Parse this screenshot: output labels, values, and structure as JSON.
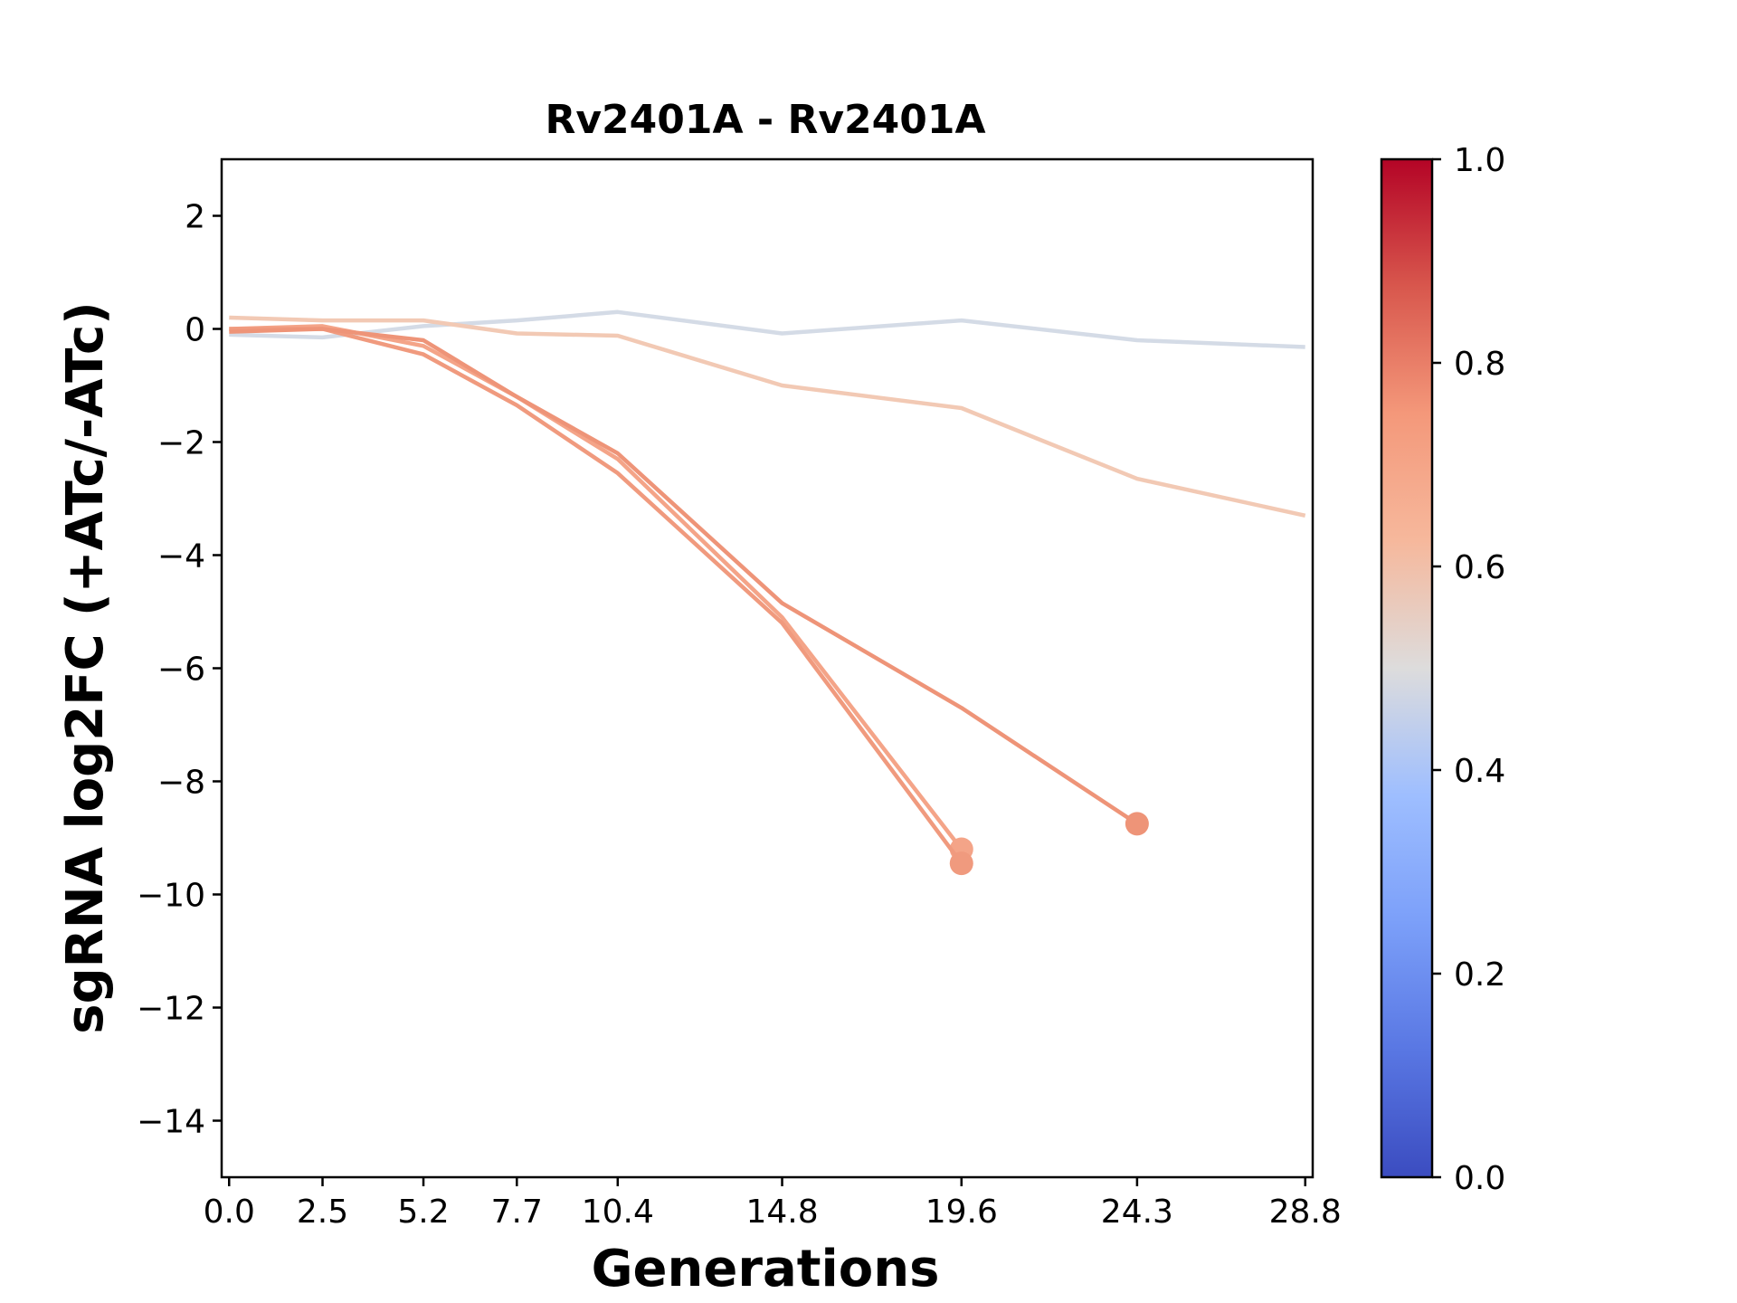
{
  "chart_data": {
    "type": "line",
    "title": "Rv2401A - Rv2401A",
    "xlabel": "Generations",
    "ylabel": "sgRNA log2FC (+ATc/-ATc)",
    "x_ticks": [
      0.0,
      2.5,
      5.2,
      7.7,
      10.4,
      14.8,
      19.6,
      24.3,
      28.8
    ],
    "x_tick_labels": [
      "0.0",
      "2.5",
      "5.2",
      "7.7",
      "10.4",
      "14.8",
      "19.6",
      "24.3",
      "28.8"
    ],
    "y_ticks": [
      2,
      0,
      -2,
      -4,
      -6,
      -8,
      -10,
      -12,
      -14
    ],
    "y_tick_labels": [
      "2",
      "0",
      "−2",
      "−4",
      "−6",
      "−8",
      "−10",
      "−12",
      "−14"
    ],
    "xlim": [
      -0.2,
      29.0
    ],
    "ylim": [
      -15,
      3
    ],
    "grid": false,
    "colorbar": {
      "range": [
        0.0,
        1.0
      ],
      "ticks": [
        0.0,
        0.2,
        0.4,
        0.6,
        0.8,
        1.0
      ],
      "tick_labels": [
        "0.0",
        "0.2",
        "0.4",
        "0.6",
        "0.8",
        "1.0"
      ],
      "colormap": "coolwarm",
      "stops": [
        {
          "v": 0.0,
          "color": "#3b4cc0"
        },
        {
          "v": 0.125,
          "color": "#5977e3"
        },
        {
          "v": 0.25,
          "color": "#7b9ff9"
        },
        {
          "v": 0.375,
          "color": "#9ebeff"
        },
        {
          "v": 0.5,
          "color": "#dddcdc"
        },
        {
          "v": 0.625,
          "color": "#f6b89c"
        },
        {
          "v": 0.75,
          "color": "#f4987a"
        },
        {
          "v": 0.875,
          "color": "#d8574d"
        },
        {
          "v": 1.0,
          "color": "#b40426"
        }
      ]
    },
    "series": [
      {
        "color": "#d4dbe6",
        "x": [
          0.0,
          2.5,
          5.2,
          7.7,
          10.4,
          14.8,
          19.6,
          24.3,
          28.8
        ],
        "y": [
          -0.1,
          -0.15,
          0.05,
          0.15,
          0.3,
          -0.08,
          0.15,
          -0.2,
          -0.32
        ],
        "end_marker": false
      },
      {
        "color": "#f2c9b4",
        "x": [
          0.0,
          2.5,
          5.2,
          7.7,
          10.4,
          14.8,
          19.6,
          24.3,
          28.8
        ],
        "y": [
          0.2,
          0.15,
          0.15,
          -0.08,
          -0.12,
          -1.0,
          -1.4,
          -2.65,
          -3.3
        ],
        "end_marker": false
      },
      {
        "color": "#f4a488",
        "x": [
          0.0,
          2.5,
          5.2,
          7.7,
          10.4,
          14.8,
          19.6
        ],
        "y": [
          0.0,
          0.05,
          -0.3,
          -1.2,
          -2.3,
          -5.1,
          -9.2
        ],
        "end_marker": true
      },
      {
        "color": "#f09a7e",
        "x": [
          0.0,
          2.5,
          5.2,
          7.7,
          10.4,
          14.8,
          19.6
        ],
        "y": [
          0.0,
          0.0,
          -0.45,
          -1.35,
          -2.55,
          -5.2,
          -9.45
        ],
        "end_marker": true
      },
      {
        "color": "#ee9478",
        "x": [
          0.0,
          2.5,
          5.2,
          7.7,
          10.4,
          14.8,
          19.6,
          24.3
        ],
        "y": [
          -0.05,
          0.0,
          -0.2,
          -1.2,
          -2.2,
          -4.85,
          -6.7,
          -8.75
        ],
        "end_marker": true
      }
    ]
  }
}
